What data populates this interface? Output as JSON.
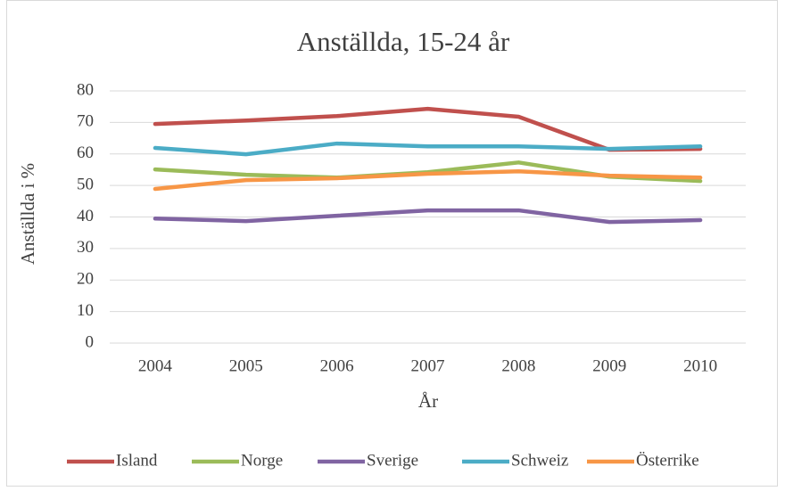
{
  "chart_data": {
    "type": "line",
    "title": "Anställda, 15-24 år",
    "x_label": "År",
    "y_label": "Anställda i %",
    "categories": [
      "2004",
      "2005",
      "2006",
      "2007",
      "2008",
      "2009",
      "2010"
    ],
    "series": [
      {
        "name": "Island",
        "color": "#c0504d",
        "values": [
          69.5,
          70.6,
          72.0,
          74.3,
          71.8,
          61.3,
          61.6
        ]
      },
      {
        "name": "Norge",
        "color": "#9bbb59",
        "values": [
          55.1,
          53.4,
          52.5,
          54.2,
          57.3,
          52.8,
          51.4
        ]
      },
      {
        "name": "Sverige",
        "color": "#8064a2",
        "values": [
          39.5,
          38.7,
          40.4,
          42.1,
          42.1,
          38.4,
          39.0
        ]
      },
      {
        "name": "Schweiz",
        "color": "#4bacc6",
        "values": [
          61.9,
          59.9,
          63.3,
          62.4,
          62.4,
          61.6,
          62.4
        ]
      },
      {
        "name": "Österrike",
        "color": "#f79646",
        "values": [
          48.9,
          51.7,
          52.3,
          53.7,
          54.5,
          53.1,
          52.5
        ]
      }
    ],
    "ylim": [
      0,
      80
    ],
    "yticks": [
      0,
      10,
      20,
      30,
      40,
      50,
      60,
      70,
      80
    ],
    "grid": true,
    "legend": "bottom"
  }
}
